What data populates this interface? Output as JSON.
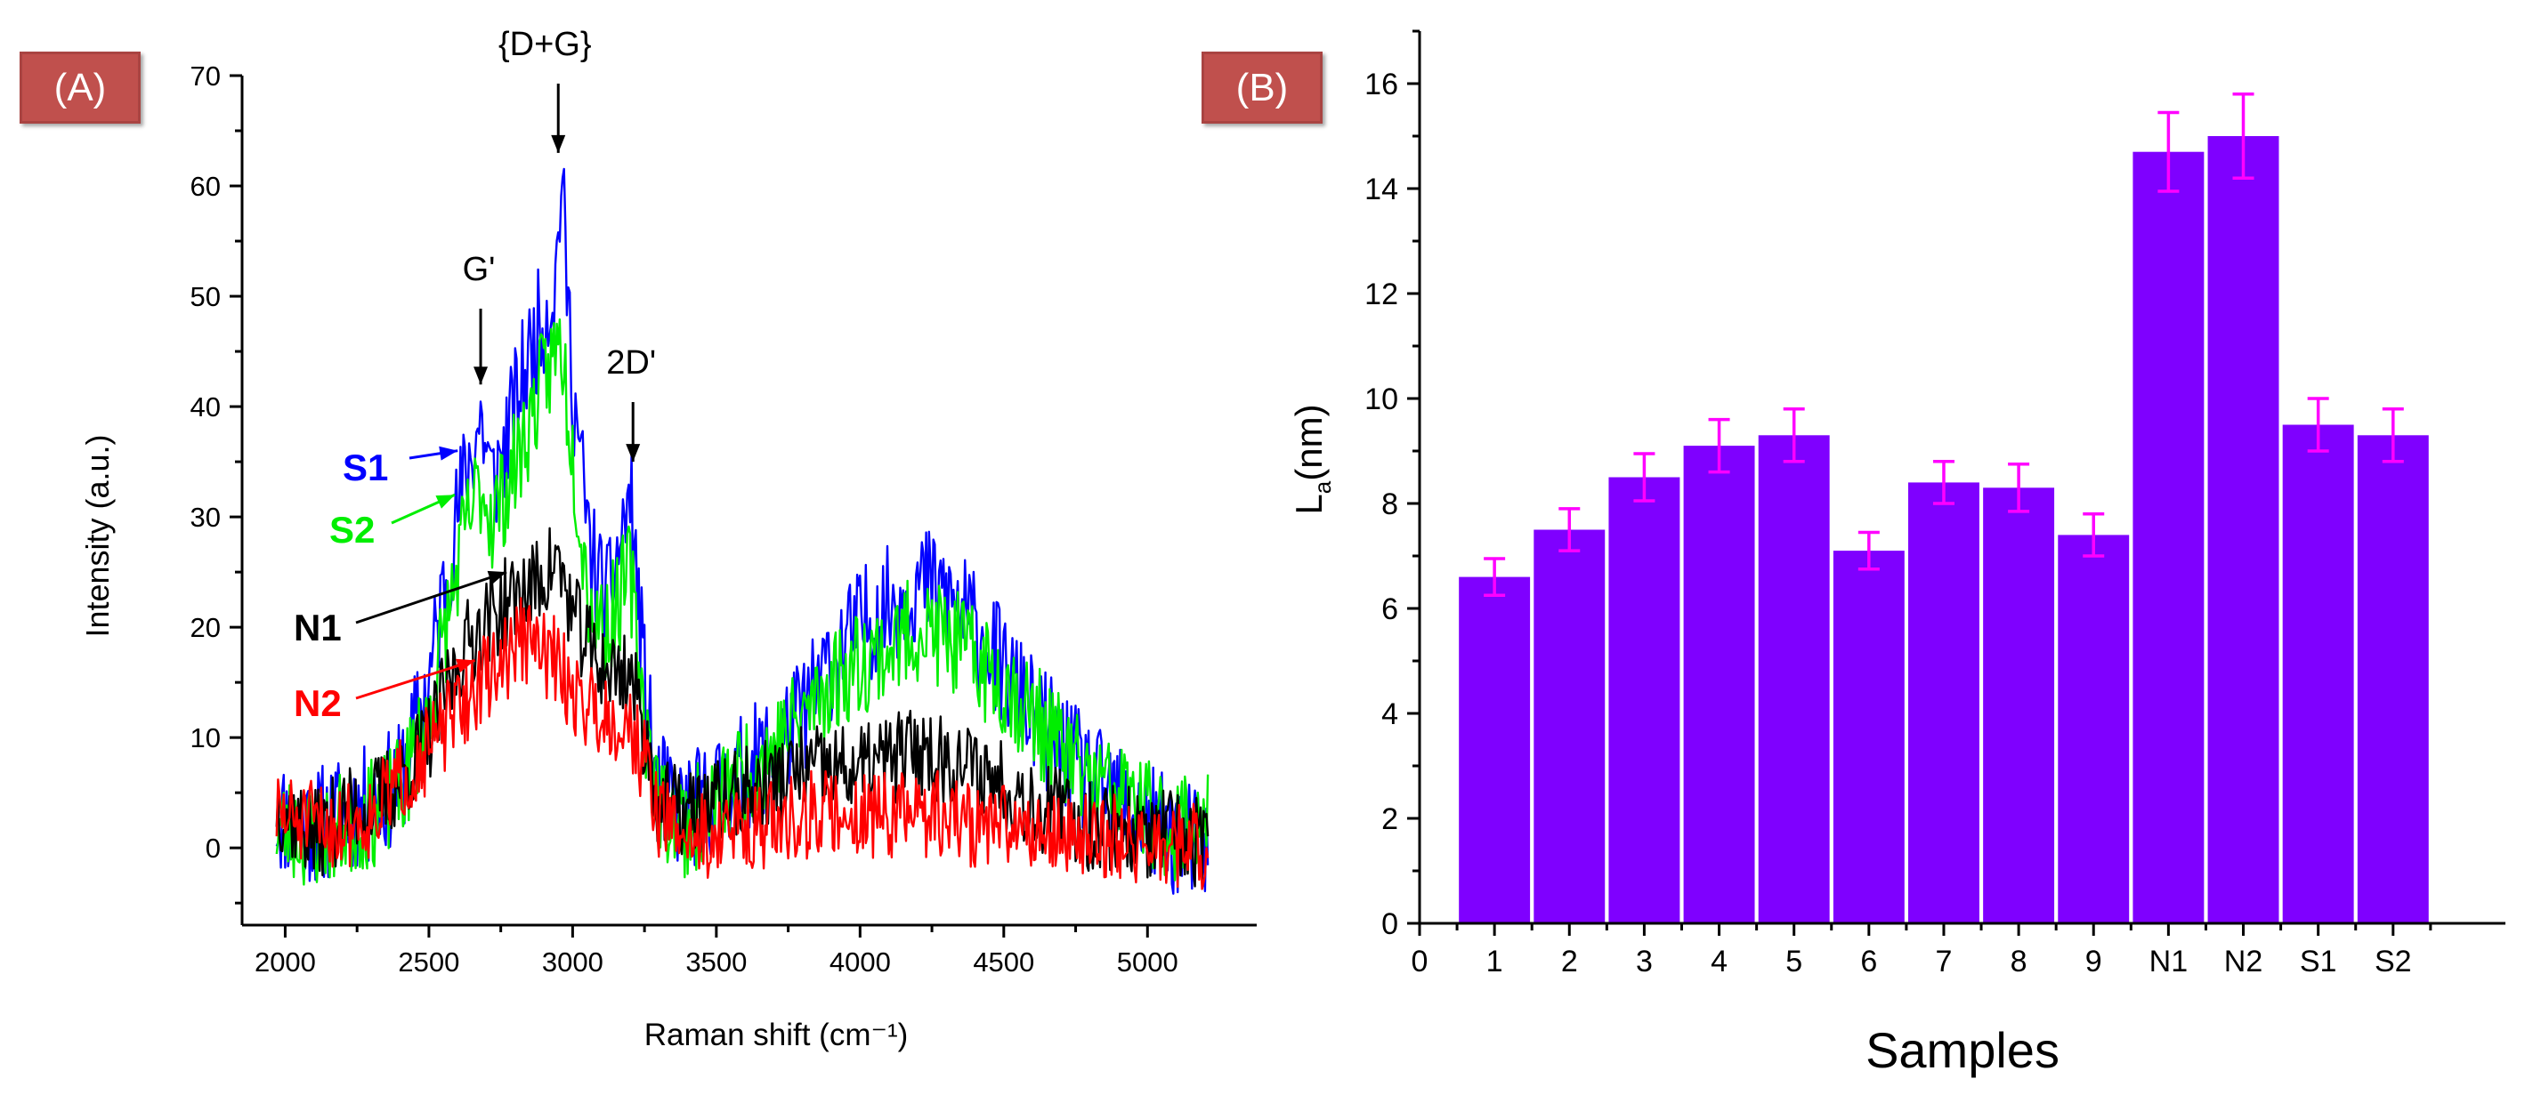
{
  "chart_data": [
    {
      "panel": "(A)",
      "type": "line",
      "title": "",
      "xlabel": "Raman shift (cm⁻¹)",
      "ylabel": "Intensity (a.u.)",
      "xlim": [
        1850,
        5380
      ],
      "ylim": [
        -7,
        70
      ],
      "xticks": [
        "2000",
        "2500",
        "3000",
        "3500",
        "4000",
        "4500",
        "5000"
      ],
      "xtick_values": [
        2000,
        2500,
        3000,
        3500,
        4000,
        4500,
        5000
      ],
      "yticks": [
        "0",
        "10",
        "20",
        "30",
        "40",
        "50",
        "60",
        "70"
      ],
      "ytick_values": [
        0,
        10,
        20,
        30,
        40,
        50,
        60,
        70
      ],
      "x_range": [
        1970,
        5210
      ],
      "series": [
        {
          "name": "S1",
          "color": "#0000ff",
          "points": [
            [
              1970,
              3
            ],
            [
              2100,
              2
            ],
            [
              2200,
              3
            ],
            [
              2300,
              4
            ],
            [
              2400,
              6
            ],
            [
              2500,
              15
            ],
            [
              2560,
              25
            ],
            [
              2620,
              33
            ],
            [
              2680,
              39
            ],
            [
              2720,
              33
            ],
            [
              2760,
              36
            ],
            [
              2820,
              42
            ],
            [
              2880,
              47
            ],
            [
              2940,
              51
            ],
            [
              2960,
              61
            ],
            [
              3000,
              42
            ],
            [
              3060,
              27
            ],
            [
              3120,
              22
            ],
            [
              3200,
              32
            ],
            [
              3260,
              12
            ],
            [
              3300,
              5
            ],
            [
              3400,
              3
            ],
            [
              3500,
              5
            ],
            [
              3600,
              7
            ],
            [
              3700,
              9
            ],
            [
              3800,
              12
            ],
            [
              3900,
              17
            ],
            [
              4000,
              20
            ],
            [
              4100,
              22
            ],
            [
              4200,
              24
            ],
            [
              4300,
              23
            ],
            [
              4400,
              20
            ],
            [
              4500,
              16
            ],
            [
              4600,
              12
            ],
            [
              4700,
              9
            ],
            [
              4800,
              6
            ],
            [
              4900,
              4
            ],
            [
              5000,
              2
            ],
            [
              5100,
              1
            ],
            [
              5210,
              0
            ]
          ]
        },
        {
          "name": "S2",
          "color": "#00ee00",
          "points": [
            [
              1970,
              2
            ],
            [
              2100,
              1
            ],
            [
              2200,
              2
            ],
            [
              2300,
              3
            ],
            [
              2400,
              5
            ],
            [
              2500,
              12
            ],
            [
              2560,
              20
            ],
            [
              2620,
              28
            ],
            [
              2680,
              33
            ],
            [
              2720,
              30
            ],
            [
              2760,
              32
            ],
            [
              2820,
              36
            ],
            [
              2880,
              41
            ],
            [
              2940,
              45
            ],
            [
              2960,
              46
            ],
            [
              3000,
              36
            ],
            [
              3060,
              22
            ],
            [
              3120,
              20
            ],
            [
              3200,
              25
            ],
            [
              3260,
              10
            ],
            [
              3300,
              4
            ],
            [
              3400,
              2
            ],
            [
              3500,
              4
            ],
            [
              3600,
              7
            ],
            [
              3700,
              9
            ],
            [
              3800,
              12
            ],
            [
              3900,
              15
            ],
            [
              4000,
              17
            ],
            [
              4100,
              18
            ],
            [
              4200,
              20
            ],
            [
              4300,
              19
            ],
            [
              4400,
              17
            ],
            [
              4500,
              15
            ],
            [
              4600,
              12
            ],
            [
              4700,
              9
            ],
            [
              4800,
              6
            ],
            [
              4900,
              5
            ],
            [
              5000,
              3
            ],
            [
              5100,
              2
            ],
            [
              5210,
              3
            ]
          ]
        },
        {
          "name": "N1",
          "color": "#000000",
          "points": [
            [
              1970,
              4
            ],
            [
              2100,
              1
            ],
            [
              2200,
              3
            ],
            [
              2300,
              4
            ],
            [
              2400,
              6
            ],
            [
              2500,
              10
            ],
            [
              2560,
              14
            ],
            [
              2620,
              18
            ],
            [
              2680,
              20
            ],
            [
              2720,
              21
            ],
            [
              2760,
              22
            ],
            [
              2820,
              23
            ],
            [
              2880,
              24
            ],
            [
              2940,
              26
            ],
            [
              2960,
              25
            ],
            [
              3000,
              21
            ],
            [
              3060,
              18
            ],
            [
              3120,
              16
            ],
            [
              3200,
              16
            ],
            [
              3260,
              9
            ],
            [
              3300,
              4
            ],
            [
              3400,
              3
            ],
            [
              3500,
              4
            ],
            [
              3600,
              5
            ],
            [
              3700,
              6
            ],
            [
              3800,
              7
            ],
            [
              3900,
              7
            ],
            [
              4000,
              7
            ],
            [
              4100,
              8
            ],
            [
              4200,
              9
            ],
            [
              4300,
              8
            ],
            [
              4400,
              7
            ],
            [
              4500,
              6
            ],
            [
              4600,
              4
            ],
            [
              4700,
              3
            ],
            [
              4800,
              2
            ],
            [
              4900,
              2
            ],
            [
              5000,
              1
            ],
            [
              5100,
              1
            ],
            [
              5210,
              0
            ]
          ]
        },
        {
          "name": "N2",
          "color": "#ff0000",
          "points": [
            [
              1970,
              3
            ],
            [
              2100,
              2
            ],
            [
              2200,
              2
            ],
            [
              2300,
              3
            ],
            [
              2400,
              6
            ],
            [
              2500,
              9
            ],
            [
              2560,
              11
            ],
            [
              2620,
              13
            ],
            [
              2680,
              15
            ],
            [
              2720,
              16
            ],
            [
              2760,
              17
            ],
            [
              2820,
              19
            ],
            [
              2880,
              18
            ],
            [
              2940,
              17
            ],
            [
              2960,
              16
            ],
            [
              3000,
              14
            ],
            [
              3060,
              13
            ],
            [
              3120,
              12
            ],
            [
              3200,
              11
            ],
            [
              3260,
              7
            ],
            [
              3300,
              3
            ],
            [
              3400,
              1
            ],
            [
              3500,
              1
            ],
            [
              3600,
              2
            ],
            [
              3700,
              2
            ],
            [
              3800,
              3
            ],
            [
              3900,
              3
            ],
            [
              4000,
              3
            ],
            [
              4100,
              3
            ],
            [
              4200,
              3
            ],
            [
              4300,
              3
            ],
            [
              4400,
              2
            ],
            [
              4500,
              2
            ],
            [
              4600,
              2
            ],
            [
              4700,
              1
            ],
            [
              4800,
              1
            ],
            [
              4900,
              1
            ],
            [
              5000,
              0
            ],
            [
              5100,
              0
            ],
            [
              5210,
              0
            ]
          ]
        }
      ],
      "series_labels": [
        {
          "text": "S1",
          "color": "#0000ff",
          "tip": [
            2600,
            36
          ]
        },
        {
          "text": "S2",
          "color": "#00ee00",
          "tip": [
            2590,
            32
          ]
        },
        {
          "text": "N1",
          "color": "#000000",
          "tip": [
            2770,
            25
          ]
        },
        {
          "text": "N2",
          "color": "#ff0000",
          "tip": [
            2660,
            17
          ]
        }
      ],
      "annotations": [
        {
          "text": "{D+G}",
          "x": 2950,
          "tip_y": 63
        },
        {
          "text": "G'",
          "x": 2680,
          "tip_y": 42
        },
        {
          "text": "2D'",
          "x": 3210,
          "tip_y": 35
        }
      ]
    },
    {
      "panel": "(B)",
      "type": "bar",
      "title": "",
      "xlabel": "Samples",
      "ylabel": "L",
      "ylabel_sub": "a",
      "ylabel_suffix": "(nm)",
      "ylim": [
        0,
        17
      ],
      "xlim": [
        0,
        14.5
      ],
      "yticks": [
        "0",
        "2",
        "4",
        "6",
        "8",
        "10",
        "12",
        "14",
        "16"
      ],
      "ytick_values": [
        0,
        2,
        4,
        6,
        8,
        10,
        12,
        14,
        16
      ],
      "x_zero_label": "0",
      "categories": [
        "1",
        "2",
        "3",
        "4",
        "5",
        "6",
        "7",
        "8",
        "9",
        "N1",
        "N2",
        "S1",
        "S2"
      ],
      "values": [
        6.6,
        7.5,
        8.5,
        9.1,
        9.3,
        7.1,
        8.4,
        8.3,
        7.4,
        14.7,
        15.0,
        9.5,
        9.3
      ],
      "errors": [
        0.35,
        0.4,
        0.45,
        0.5,
        0.5,
        0.35,
        0.4,
        0.45,
        0.4,
        0.75,
        0.8,
        0.5,
        0.5
      ],
      "bar_color": "#7f00ff",
      "error_color": "#ff00ff"
    }
  ]
}
